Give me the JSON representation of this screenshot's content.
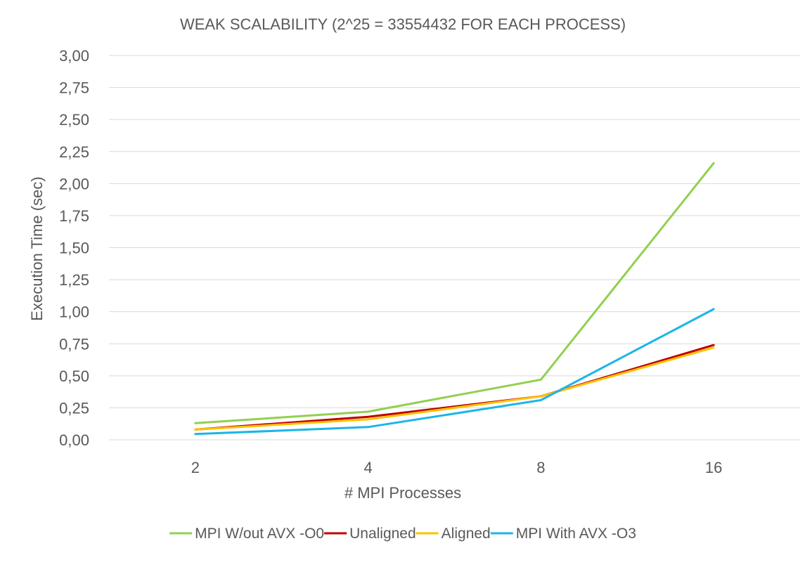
{
  "chart_data": {
    "type": "line",
    "title": "WEAK SCALABILITY (2^25 = 33554432 FOR EACH PROCESS)",
    "xlabel": "# MPI Processes",
    "ylabel": "Execution Time (sec)",
    "categories": [
      "2",
      "4",
      "8",
      "16"
    ],
    "ylim": [
      0,
      3
    ],
    "yticks": [
      "0,00",
      "0,25",
      "0,50",
      "0,75",
      "1,00",
      "1,25",
      "1,50",
      "1,75",
      "2,00",
      "2,25",
      "2,50",
      "2,75",
      "3,00"
    ],
    "ytick_values": [
      0,
      0.25,
      0.5,
      0.75,
      1.0,
      1.25,
      1.5,
      1.75,
      2.0,
      2.25,
      2.5,
      2.75,
      3.0
    ],
    "grid": true,
    "legend_position": "bottom",
    "series": [
      {
        "name": "MPI W/out AVX -O0",
        "color": "#92D050",
        "values": [
          0.13,
          0.22,
          0.47,
          2.16
        ]
      },
      {
        "name": "Unaligned",
        "color": "#C00000",
        "values": [
          0.08,
          0.18,
          0.34,
          0.74
        ]
      },
      {
        "name": "Aligned",
        "color": "#FFC000",
        "values": [
          0.08,
          0.16,
          0.34,
          0.72
        ]
      },
      {
        "name": "MPI With AVX -O3",
        "color": "#1CB5E8",
        "values": [
          0.045,
          0.1,
          0.31,
          1.02
        ]
      }
    ]
  }
}
